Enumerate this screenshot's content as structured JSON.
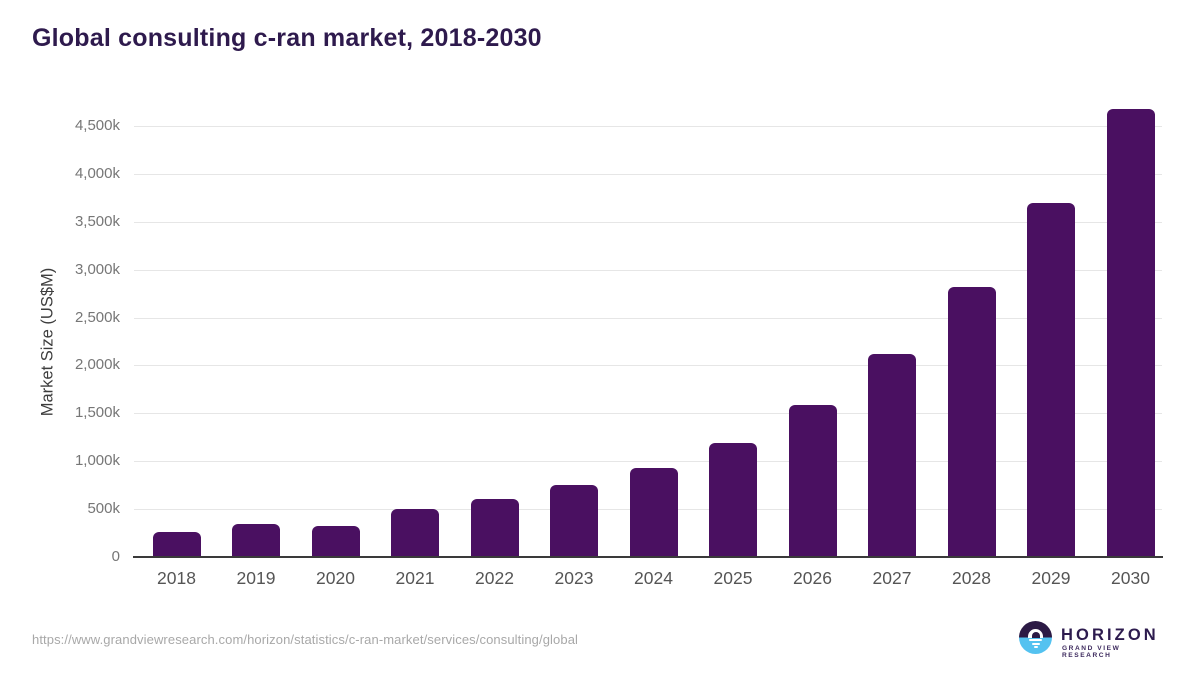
{
  "header": {
    "title": "Global consulting c-ran market, 2018-2030"
  },
  "chart_data": {
    "type": "bar",
    "title": "Global consulting c-ran market, 2018-2030",
    "categories": [
      "2018",
      "2019",
      "2020",
      "2021",
      "2022",
      "2023",
      "2024",
      "2025",
      "2026",
      "2027",
      "2028",
      "2029",
      "2030"
    ],
    "values": [
      260,
      345,
      320,
      505,
      610,
      750,
      925,
      1190,
      1585,
      2120,
      2820,
      3695,
      4680
    ],
    "xlabel": "",
    "ylabel": "Market Size (US$M)",
    "ylim": [
      0,
      4700
    ],
    "ytick_step": 500,
    "yticks": [
      "0",
      "500k",
      "1,000k",
      "1,500k",
      "2,000k",
      "2,500k",
      "3,000k",
      "3,500k",
      "4,000k",
      "4,500k"
    ],
    "grid": true,
    "legend": false,
    "bar_color": "#4a1061"
  },
  "footer": {
    "source_url": "https://www.grandviewresearch.com/horizon/statistics/c-ran-market/services/consulting/global",
    "logo": {
      "name": "HORIZON",
      "subtitle": "GRAND VIEW RESEARCH"
    }
  },
  "colors": {
    "title": "#2e1a4d",
    "bar": "#4a1061",
    "grid_line": "#e6e6e6",
    "axis_line": "#3a3a3a",
    "y_tick_label": "#767676",
    "x_tick_label": "#555555",
    "url_text": "#a8a8a8",
    "logo_purple": "#2c1a45",
    "logo_blue": "#54c2f0"
  }
}
